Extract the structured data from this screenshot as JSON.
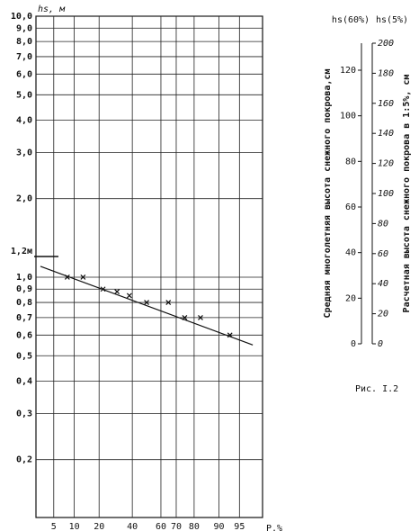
{
  "chart_data": [
    {
      "type": "scatter",
      "y_label": "hs, м",
      "x_label": "P,%",
      "yscale": "log",
      "xscale": "probability",
      "xlim": [
        2.5,
        98
      ],
      "ylim": [
        0.12,
        10
      ],
      "xticks": [
        5,
        10,
        20,
        40,
        60,
        70,
        80,
        90,
        95
      ],
      "yticks": [
        {
          "value": 10,
          "label": "10,0"
        },
        {
          "value": 9,
          "label": "9,0"
        },
        {
          "value": 8,
          "label": "8,0"
        },
        {
          "value": 7,
          "label": "7,0"
        },
        {
          "value": 6,
          "label": "6,0"
        },
        {
          "value": 5,
          "label": "5,0"
        },
        {
          "value": 4,
          "label": "4,0"
        },
        {
          "value": 3,
          "label": "3,0"
        },
        {
          "value": 2,
          "label": "2,0"
        },
        {
          "value": 1,
          "label": "1,0"
        },
        {
          "value": 0.9,
          "label": "0,9"
        },
        {
          "value": 0.8,
          "label": "0,8"
        },
        {
          "value": 0.7,
          "label": "0,7"
        },
        {
          "value": 0.6,
          "label": "0,6"
        },
        {
          "value": 0.5,
          "label": "0,5"
        },
        {
          "value": 0.4,
          "label": "0,4"
        },
        {
          "value": 0.3,
          "label": "0,3"
        },
        {
          "value": 0.2,
          "label": "0,2"
        }
      ],
      "grid": true,
      "color": "#111111",
      "series": [
        {
          "marker": "x",
          "x": [
            8,
            13,
            22,
            30,
            38,
            50,
            65,
            75,
            83,
            93
          ],
          "values": [
            1.0,
            1.0,
            0.9,
            0.88,
            0.85,
            0.8,
            0.8,
            0.7,
            0.7,
            0.6
          ]
        },
        {
          "marker": "line",
          "x": [
            3,
            97
          ],
          "values": [
            1.1,
            0.55
          ]
        }
      ],
      "annotation": {
        "text": "1,2м",
        "x": 3,
        "y": 1.2
      }
    },
    {
      "type": "scale",
      "y_header": "hs(60%)",
      "y2_header": "hs(5%)",
      "y_label": "Средняя многолетняя высота снежного покрова,см",
      "y2_label": "Расчетная высота снежного покрова в 1:5%, см",
      "ylim": [
        0,
        120
      ],
      "yticks": [
        0,
        20,
        40,
        60,
        80,
        100,
        120
      ],
      "y2lim": [
        0,
        200
      ],
      "y2ticks": [
        0,
        20,
        40,
        60,
        80,
        100,
        120,
        140,
        160,
        180,
        200
      ]
    }
  ],
  "caption": "Рис. I.2"
}
